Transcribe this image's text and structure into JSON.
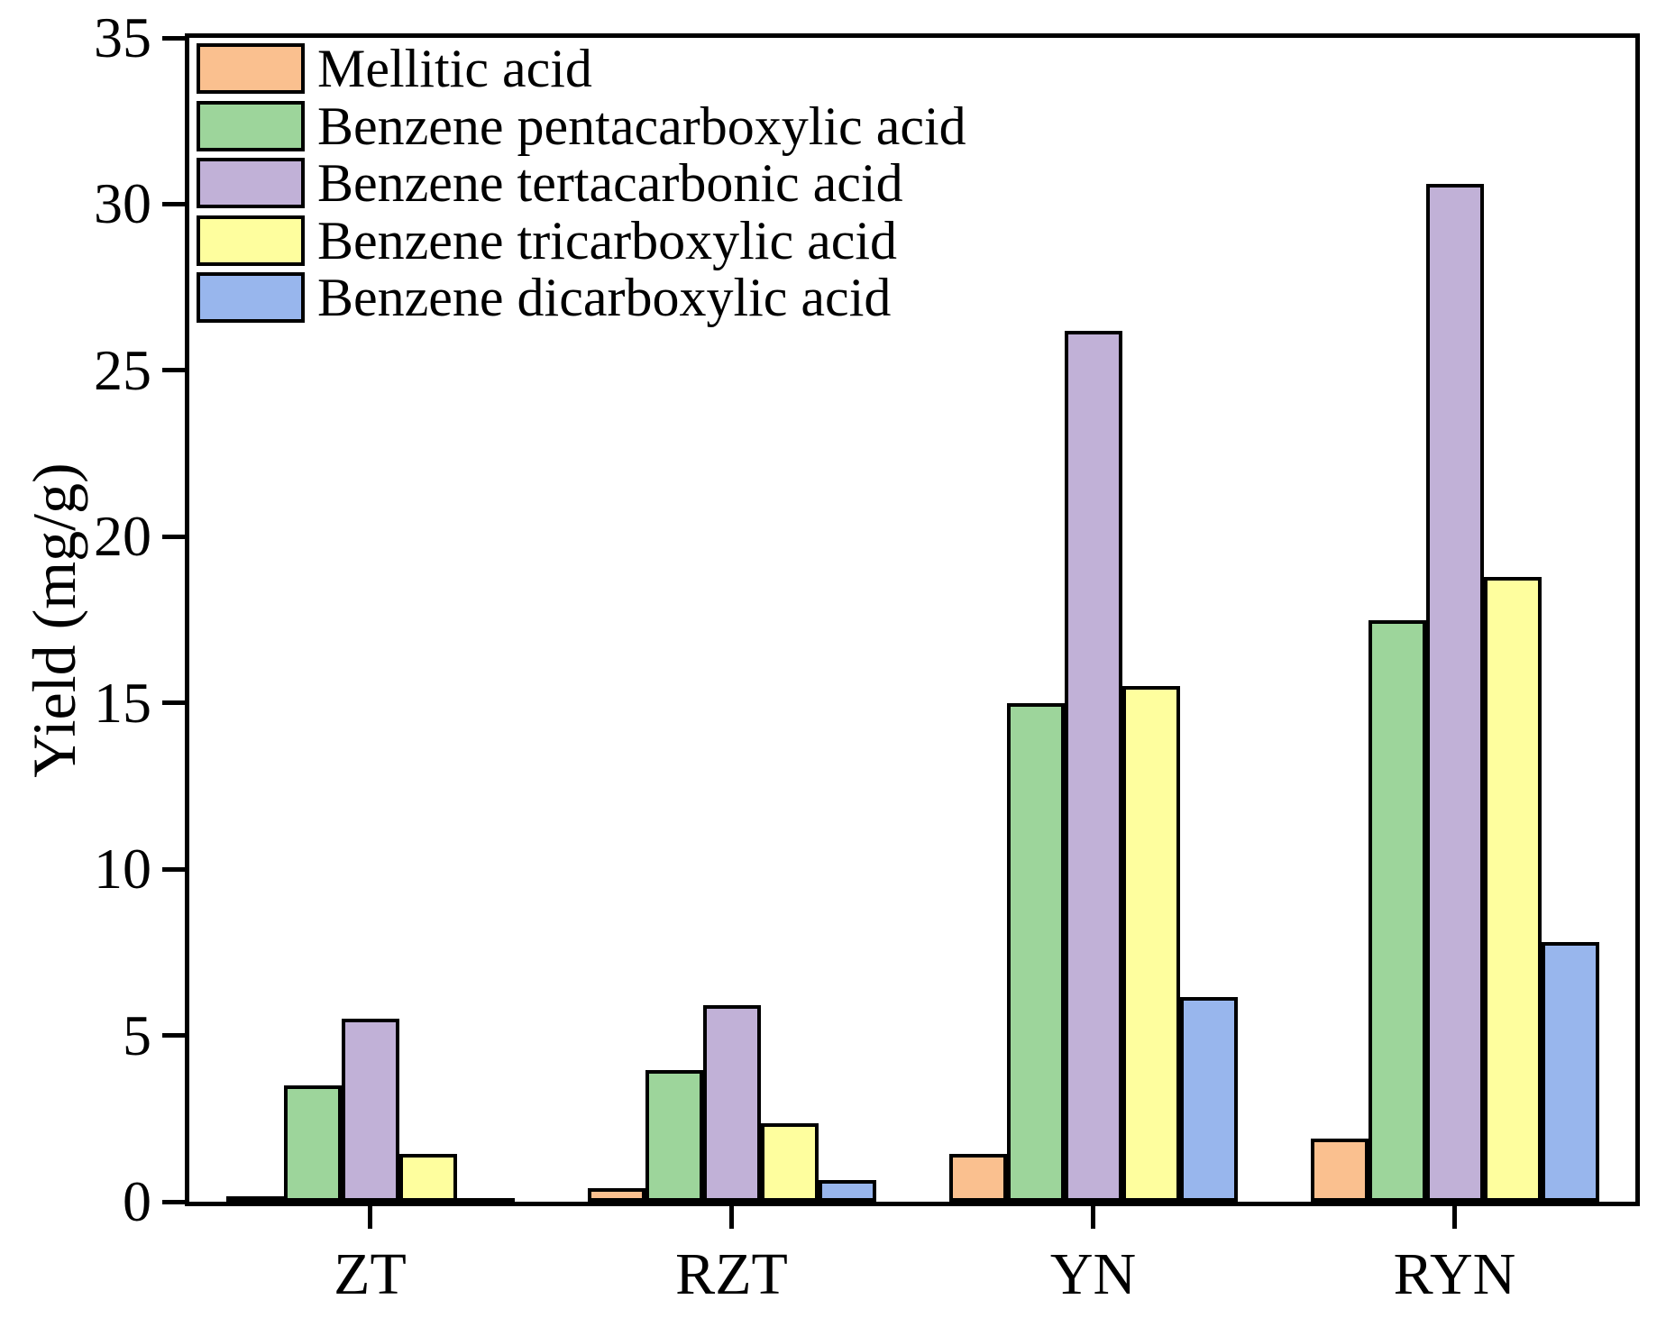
{
  "chart_data": {
    "type": "bar",
    "title": "",
    "xlabel": "",
    "ylabel": "Yield (mg/g)",
    "categories": [
      "ZT",
      "RZT",
      "YN",
      "RYN"
    ],
    "series": [
      {
        "name": "Mellitic acid",
        "color": "#FAC08F",
        "values": [
          0.15,
          0.4,
          1.45,
          1.9
        ]
      },
      {
        "name": "Benzene pentacarboxylic acid",
        "color": "#9DD59B",
        "values": [
          3.5,
          3.95,
          15.0,
          17.5
        ]
      },
      {
        "name": "Benzene tertacarbonic acid",
        "color": "#C1B1D7",
        "values": [
          5.5,
          5.9,
          26.2,
          30.6
        ]
      },
      {
        "name": "Benzene tricarboxylic acid",
        "color": "#FEFE9E",
        "values": [
          1.45,
          2.35,
          15.5,
          18.8
        ]
      },
      {
        "name": "Benzene dicarboxylic acid",
        "color": "#98B6ED",
        "values": [
          0.1,
          0.65,
          6.15,
          7.8
        ]
      }
    ],
    "ylim": [
      0,
      35
    ],
    "yticks": [
      "0",
      "5",
      "10",
      "15",
      "20",
      "25",
      "30",
      "35"
    ],
    "ytick_values": [
      0,
      5,
      10,
      15,
      20,
      25,
      30,
      35
    ],
    "grid": false,
    "legend_position": "top-left",
    "bar_outline_color": "#000000",
    "axis_color": "#000000"
  }
}
